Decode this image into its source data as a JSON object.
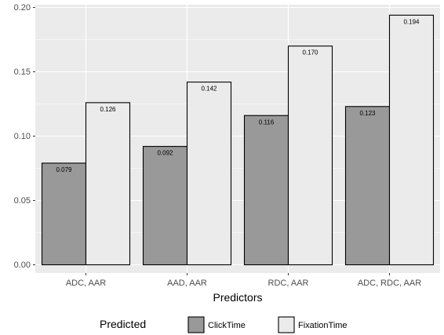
{
  "chart_data": {
    "type": "bar",
    "categories": [
      "ADC, AAR",
      "AAD, AAR",
      "RDC, AAR",
      "ADC, RDC, AAR"
    ],
    "series": [
      {
        "name": "ClickTime",
        "values": [
          0.079,
          0.092,
          0.116,
          0.123
        ],
        "labels": [
          "0.079",
          "0.092",
          "0.116",
          "0.123"
        ],
        "color": "#999999"
      },
      {
        "name": "FixationTime",
        "values": [
          0.126,
          0.142,
          0.17,
          0.194
        ],
        "labels": [
          "0.126",
          "0.142",
          "0.170",
          "0.194"
        ],
        "color": "#ebebeb"
      }
    ],
    "y_ticks": [
      0.0,
      0.05,
      0.1,
      0.15,
      0.2
    ],
    "y_tick_labels": [
      "0.00",
      "0.05",
      "0.10",
      "0.15",
      "0.20"
    ],
    "ylim": [
      0,
      0.2
    ],
    "xlabel": "Predictors",
    "ylabel": "",
    "title": "",
    "legend": {
      "title": "Predicted",
      "position": "bottom"
    },
    "grid": true,
    "panel_background": "#ebebeb",
    "grid_color": "#ffffff"
  }
}
